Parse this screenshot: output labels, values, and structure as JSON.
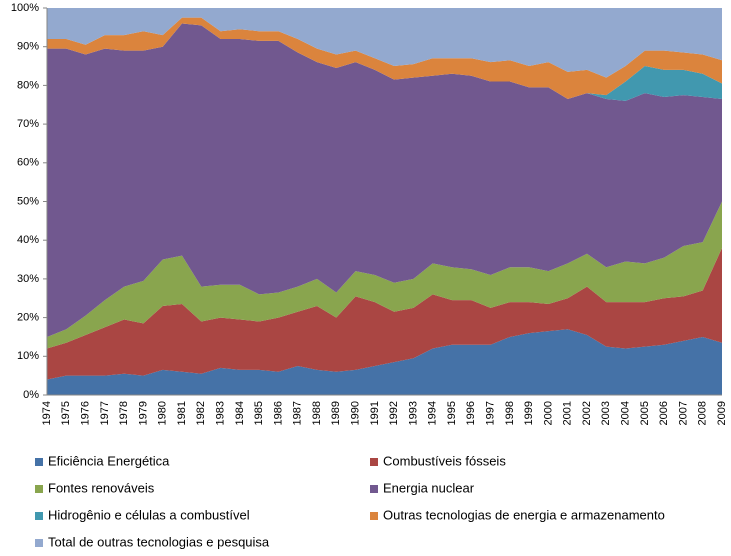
{
  "chart_data": {
    "type": "stacked_area",
    "categories": [
      "1974",
      "1975",
      "1976",
      "1977",
      "1978",
      "1979",
      "1980",
      "1981",
      "1982",
      "1983",
      "1984",
      "1985",
      "1986",
      "1987",
      "1988",
      "1989",
      "1990",
      "1991",
      "1992",
      "1993",
      "1994",
      "1995",
      "1996",
      "1997",
      "1998",
      "1999",
      "2000",
      "2001",
      "2002",
      "2003",
      "2004",
      "2005",
      "2006",
      "2007",
      "2008",
      "2009"
    ],
    "series": [
      {
        "name": "Eficiência Energética",
        "color": "#4572a7",
        "values": [
          4,
          5,
          5,
          5,
          5.5,
          5,
          6.5,
          6,
          5.5,
          7,
          6.5,
          6.5,
          6,
          7.5,
          6.5,
          6,
          6.5,
          7.5,
          8.5,
          9.5,
          12,
          13,
          13,
          13,
          15,
          16,
          16.5,
          17,
          15.5,
          12.5,
          12,
          12.5,
          13,
          14,
          15,
          13.5
        ]
      },
      {
        "name": "Combustíveis fósseis",
        "color": "#aa4643",
        "values": [
          8,
          8.5,
          10.5,
          12.5,
          14,
          13.5,
          16.5,
          17.5,
          13.5,
          13,
          13,
          12.5,
          14,
          14,
          16.5,
          14,
          19,
          16.5,
          13,
          13,
          14,
          11.5,
          11.5,
          9.5,
          9,
          8,
          7,
          8,
          12.5,
          11.5,
          12,
          11.5,
          12,
          11.5,
          12,
          24.5
        ]
      },
      {
        "name": "Fontes renováveis",
        "color": "#89a54e",
        "values": [
          3,
          3.5,
          5,
          7,
          8.5,
          11,
          12,
          12.5,
          9,
          8.5,
          9,
          7,
          6.5,
          6.5,
          7,
          6.5,
          6.5,
          7,
          7.5,
          7.5,
          8,
          8.5,
          8,
          8.5,
          9,
          9,
          8.5,
          9,
          8.5,
          9,
          10.5,
          10,
          10.5,
          13,
          12.5,
          12
        ]
      },
      {
        "name": "Energia nuclear",
        "color": "#71588f",
        "values": [
          74.5,
          72.5,
          67.5,
          65,
          61,
          59.5,
          55,
          60,
          67.5,
          63.5,
          63.5,
          65.5,
          65,
          60.5,
          56,
          58,
          54,
          53,
          52.5,
          52,
          48.5,
          50,
          50,
          50,
          48,
          46.5,
          47.5,
          42.5,
          41.5,
          43.5,
          41.5,
          44,
          41.5,
          39,
          37.5,
          26.5
        ]
      },
      {
        "name": "Hidrogênio e células a combustível",
        "color": "#4198af",
        "values": [
          0,
          0,
          0,
          0,
          0,
          0,
          0,
          0,
          0,
          0,
          0,
          0,
          0,
          0,
          0,
          0,
          0,
          0,
          0,
          0,
          0,
          0,
          0,
          0,
          0,
          0,
          0,
          0,
          0,
          1,
          5,
          7,
          7,
          6.5,
          6,
          4
        ]
      },
      {
        "name": "Outras tecnologias de energia e armazenamento",
        "color": "#db843d",
        "values": [
          2.5,
          2.5,
          2.5,
          3.5,
          4,
          5,
          3,
          1.5,
          2,
          2,
          2.5,
          2.5,
          2.5,
          3.5,
          3.5,
          3.5,
          3,
          3,
          3.5,
          3.5,
          4.5,
          4,
          4.5,
          5,
          5.5,
          5.5,
          6.5,
          7,
          6,
          4.5,
          4,
          4,
          5,
          4.5,
          5,
          6
        ]
      },
      {
        "name": "Total de outras tecnologias e pesquisa",
        "color": "#93a9cf",
        "values": [
          8,
          8,
          9.5,
          7,
          7,
          6,
          7,
          2.5,
          2.5,
          6,
          5.5,
          6,
          6,
          8,
          10.5,
          12,
          11,
          13,
          15,
          14.5,
          13,
          13,
          13,
          14,
          13.5,
          15,
          14,
          16.5,
          16,
          18,
          15,
          11,
          11,
          11.5,
          12,
          13.5
        ]
      }
    ],
    "ylim": [
      0,
      100
    ],
    "yticks": [
      {
        "value": 0,
        "label": "0%"
      },
      {
        "value": 10,
        "label": "10%"
      },
      {
        "value": 20,
        "label": "20%"
      },
      {
        "value": 30,
        "label": "30%"
      },
      {
        "value": 40,
        "label": "40%"
      },
      {
        "value": 50,
        "label": "50%"
      },
      {
        "value": 60,
        "label": "60%"
      },
      {
        "value": 70,
        "label": "70%"
      },
      {
        "value": 80,
        "label": "80%"
      },
      {
        "value": 90,
        "label": "90%"
      },
      {
        "value": 100,
        "label": "100%"
      }
    ]
  }
}
